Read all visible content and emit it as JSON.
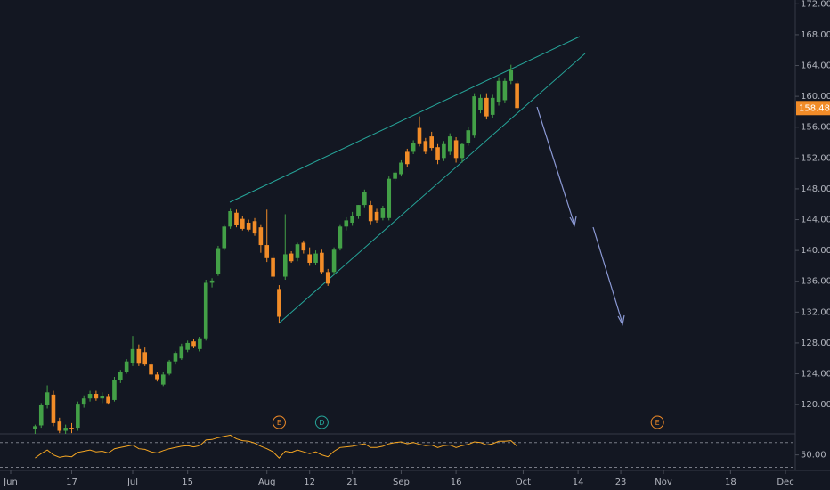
{
  "chart_data": {
    "type": "candlestick",
    "up_color": "#43a047",
    "down_color": "#f28c28",
    "x": [
      4,
      5,
      6,
      7,
      8,
      9,
      10,
      11,
      12,
      13,
      14,
      15,
      16,
      17,
      18,
      19,
      20,
      21,
      22,
      23,
      24,
      25,
      26,
      27,
      28,
      29,
      30,
      31,
      32,
      33,
      34,
      35,
      36,
      37,
      38,
      39,
      40,
      41,
      42,
      43,
      44,
      45,
      46,
      47,
      48,
      49,
      50,
      51,
      52,
      53,
      54,
      55,
      56,
      57,
      58,
      59,
      60,
      61,
      62,
      63,
      64,
      65,
      66,
      67,
      68,
      69,
      70,
      71,
      72,
      73,
      74,
      75,
      76,
      77,
      78,
      79,
      80,
      81,
      82,
      83
    ],
    "open": [
      116.8,
      117.3,
      119.9,
      121.3,
      117.8,
      116.6,
      117.0,
      117.0,
      120.0,
      120.8,
      121.4,
      120.8,
      121.0,
      120.6,
      123.2,
      124.2,
      125.4,
      127.2,
      126.8,
      125.2,
      123.9,
      122.6,
      124.0,
      125.6,
      126.0,
      127.1,
      128.2,
      127.2,
      128.6,
      135.8,
      136.9,
      140.3,
      143.1,
      144.9,
      144.1,
      143.6,
      143.8,
      143.0,
      140.7,
      139.0,
      135.0,
      136.6,
      139.6,
      139.0,
      141.0,
      139.5,
      138.4,
      139.7,
      137.2,
      137.2,
      140.3,
      143.1,
      143.6,
      144.5,
      145.9,
      145.9,
      145.0,
      144.2,
      144.2,
      149.3,
      149.9,
      152.8,
      152.8,
      155.9,
      154.2,
      154.8,
      153.4,
      152.0,
      152.8,
      154.3,
      152.0,
      154.0,
      154.9,
      158.2,
      159.8,
      157.6,
      159.2,
      159.5,
      162.0,
      161.7
    ],
    "high": [
      117.4,
      120.2,
      122.5,
      121.8,
      118.3,
      117.4,
      117.6,
      120.4,
      121.2,
      121.8,
      121.8,
      121.6,
      121.4,
      123.6,
      124.5,
      125.9,
      128.9,
      127.8,
      127.4,
      125.6,
      124.2,
      124.2,
      125.8,
      126.9,
      127.9,
      128.3,
      128.5,
      128.8,
      136.2,
      136.4,
      140.6,
      143.4,
      145.4,
      145.3,
      144.5,
      144.0,
      144.2,
      143.4,
      145.3,
      139.5,
      135.5,
      144.7,
      139.9,
      141.0,
      141.3,
      140.4,
      140.0,
      140.1,
      137.6,
      140.4,
      143.4,
      144.3,
      145.0,
      145.9,
      147.9,
      146.4,
      145.4,
      145.8,
      149.6,
      150.3,
      151.7,
      153.2,
      154.3,
      157.4,
      154.6,
      155.4,
      153.8,
      154.2,
      155.2,
      154.7,
      154.0,
      156.0,
      160.4,
      160.2,
      160.4,
      160.2,
      162.5,
      162.3,
      164.1,
      162.0
    ],
    "low": [
      116.2,
      117.0,
      119.5,
      117.2,
      116.3,
      116.2,
      116.3,
      116.6,
      119.6,
      120.4,
      120.5,
      120.2,
      120.0,
      120.4,
      122.8,
      124.0,
      125.0,
      125.0,
      125.0,
      123.6,
      123.0,
      122.4,
      123.8,
      125.2,
      125.8,
      126.8,
      127.3,
      126.9,
      128.3,
      135.2,
      136.7,
      140.0,
      142.8,
      143.0,
      142.6,
      142.5,
      141.9,
      139.7,
      138.5,
      136.2,
      130.6,
      136.2,
      138.4,
      138.6,
      139.6,
      138.0,
      138.1,
      136.9,
      135.4,
      136.8,
      140.0,
      142.6,
      143.2,
      144.1,
      145.6,
      143.4,
      143.6,
      143.9,
      143.9,
      149.0,
      149.6,
      150.8,
      152.5,
      153.5,
      152.5,
      153.0,
      151.2,
      151.6,
      152.4,
      151.4,
      151.4,
      153.6,
      154.6,
      157.8,
      157.0,
      157.2,
      158.8,
      159.1,
      161.6,
      158.2
    ],
    "close": [
      117.2,
      119.9,
      121.6,
      117.6,
      116.6,
      117.0,
      116.8,
      120.0,
      120.8,
      121.4,
      120.8,
      121.1,
      120.2,
      123.2,
      124.2,
      125.6,
      127.2,
      125.3,
      125.2,
      123.9,
      123.3,
      123.9,
      125.6,
      126.7,
      127.6,
      128.0,
      127.6,
      128.6,
      135.8,
      136.1,
      140.3,
      143.1,
      145.1,
      143.3,
      142.8,
      142.7,
      142.2,
      140.7,
      139.0,
      136.6,
      131.4,
      139.5,
      138.6,
      140.8,
      140.0,
      138.4,
      139.6,
      137.2,
      135.7,
      140.1,
      143.1,
      143.9,
      144.5,
      145.9,
      147.6,
      143.8,
      143.9,
      145.5,
      149.3,
      150.1,
      151.4,
      151.2,
      154.0,
      153.8,
      152.8,
      153.3,
      151.7,
      153.8,
      154.8,
      152.0,
      153.8,
      155.6,
      160.0,
      159.8,
      157.4,
      159.8,
      162.0,
      162.0,
      163.4,
      158.48
    ],
    "xlim": [
      -1.75,
      128.6
    ],
    "xticks": [
      {
        "value": 0,
        "label": "Jun"
      },
      {
        "value": 10,
        "label": "17"
      },
      {
        "value": 20,
        "label": "Jul"
      },
      {
        "value": 29,
        "label": "15"
      },
      {
        "value": 42,
        "label": "Aug"
      },
      {
        "value": 49,
        "label": "12"
      },
      {
        "value": 56,
        "label": "21"
      },
      {
        "value": 64,
        "label": "Sep"
      },
      {
        "value": 73,
        "label": "16"
      },
      {
        "value": 84,
        "label": "Oct"
      },
      {
        "value": 93,
        "label": "14"
      },
      {
        "value": 100,
        "label": "23"
      },
      {
        "value": 107,
        "label": "Nov"
      },
      {
        "value": 118,
        "label": "18"
      },
      {
        "value": 127,
        "label": "Dec"
      }
    ],
    "ylim": [
      116.2,
      172.5
    ],
    "yticks": [
      {
        "value": 120,
        "label": "120.00"
      },
      {
        "value": 124,
        "label": "124.00"
      },
      {
        "value": 128,
        "label": "128.00"
      },
      {
        "value": 132,
        "label": "132.00"
      },
      {
        "value": 136,
        "label": "136.00"
      },
      {
        "value": 140,
        "label": "140.00"
      },
      {
        "value": 144,
        "label": "144.00"
      },
      {
        "value": 148,
        "label": "148.00"
      },
      {
        "value": 152,
        "label": "152.00"
      },
      {
        "value": 156,
        "label": "156.00"
      },
      {
        "value": 160,
        "label": "160.00"
      },
      {
        "value": 164,
        "label": "164.00"
      },
      {
        "value": 168,
        "label": "168.00"
      },
      {
        "value": 172,
        "label": "172.00"
      }
    ],
    "events": [
      {
        "x": 44,
        "text": "E",
        "color": "#f28c28"
      },
      {
        "x": 51,
        "text": "D",
        "color": "#26a69a"
      },
      {
        "x": 106,
        "text": "E",
        "color": "#f28c28"
      }
    ],
    "rsi": {
      "color": "#f5a623",
      "values": [
        45,
        52,
        58,
        50,
        46,
        48,
        47,
        54,
        56,
        58,
        55,
        56,
        53,
        60,
        62,
        64,
        66,
        60,
        59,
        55,
        53,
        57,
        60,
        62,
        64,
        65,
        63,
        65,
        74,
        75,
        78,
        80,
        82,
        76,
        73,
        72,
        69,
        64,
        60,
        55,
        45,
        56,
        54,
        58,
        55,
        52,
        55,
        50,
        47,
        56,
        62,
        63,
        64,
        66,
        68,
        62,
        62,
        64,
        68,
        70,
        71,
        68,
        70,
        67,
        65,
        66,
        62,
        65,
        66,
        62,
        65,
        67,
        71,
        70,
        66,
        68,
        72,
        72,
        73,
        64
      ],
      "ylim": [
        25,
        84
      ],
      "yticks": [
        {
          "value": 50,
          "label": "50.00"
        }
      ],
      "levels": [
        70,
        30
      ]
    }
  }
}
